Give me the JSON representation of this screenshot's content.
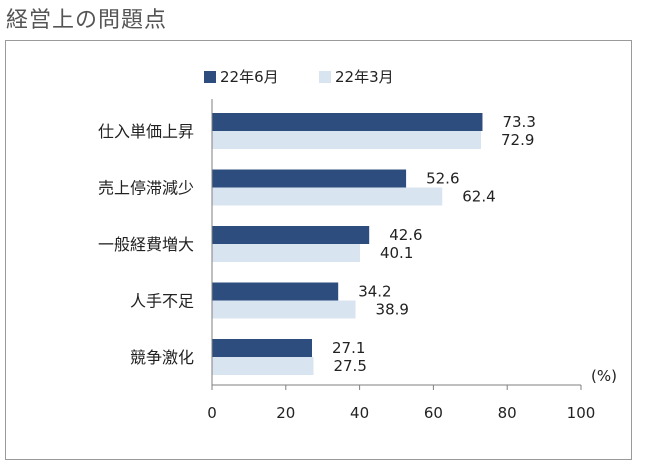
{
  "title": "経営上の問題点",
  "colors": {
    "series_a": "#2e4d7f",
    "series_b": "#d9e4f1",
    "axis": "#7f7f7f",
    "text": "#222222"
  },
  "chart_data": {
    "type": "bar",
    "orientation": "horizontal",
    "categories": [
      "仕入単価上昇",
      "売上停滞減少",
      "一般経費増大",
      "人手不足",
      "競争激化"
    ],
    "series": [
      {
        "name": "22年6月",
        "values": [
          73.3,
          52.6,
          42.6,
          34.2,
          27.1
        ]
      },
      {
        "name": "22年3月",
        "values": [
          72.9,
          62.4,
          40.1,
          38.9,
          27.5
        ]
      }
    ],
    "value_labels": [
      [
        "73.3",
        "52.6",
        "42.6",
        "34.2",
        "27.1"
      ],
      [
        "72.9",
        "62.4",
        "40.1",
        "38.9",
        "27.5"
      ]
    ],
    "xlim": [
      0,
      100
    ],
    "xticks": [
      "0",
      "20",
      "40",
      "60",
      "80",
      "100"
    ],
    "unit_label": "(%)",
    "legend": "top",
    "grid": false
  }
}
